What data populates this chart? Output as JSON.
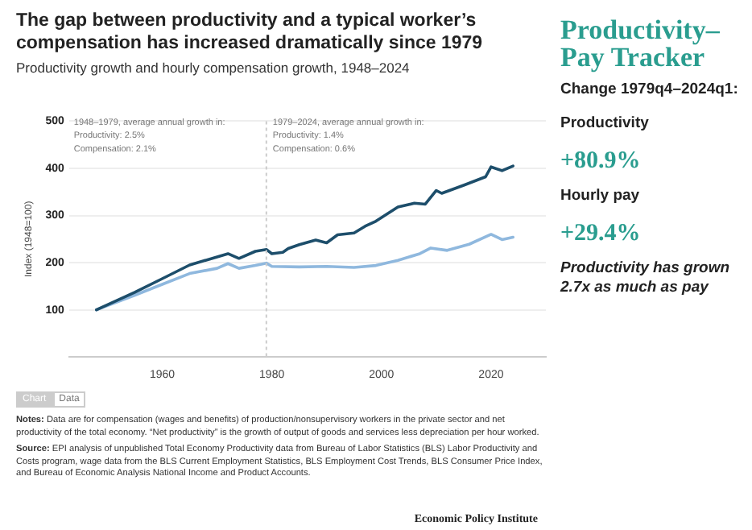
{
  "chart_data": [
    {
      "type": "line",
      "title": "The gap between productivity and a typical worker’s compensation has increased dramatically since 1979",
      "subtitle": "Productivity growth and hourly compensation growth, 1948–2024",
      "ylabel": "Index (1948=100)",
      "xlim": [
        1943,
        2030
      ],
      "xticks": [
        1960,
        1980,
        2000,
        2020
      ],
      "ylim": [
        0,
        500
      ],
      "yticks": [
        100,
        200,
        300,
        400,
        500
      ],
      "grid": "y",
      "legend": false,
      "marker": "none",
      "line_style": "solid",
      "ref_lines": [
        {
          "axis": "x",
          "value": 1979,
          "color": "#cccccc",
          "line_style": "dotted"
        }
      ],
      "series": [
        {
          "color": "#1d4e6b",
          "x": [
            1948,
            1955,
            1960,
            1965,
            1972,
            1974,
            1977,
            1979,
            1980,
            1982,
            1983,
            1985,
            1988,
            1990,
            1992,
            1995,
            1997,
            1999,
            2003,
            2006,
            2008,
            2010,
            2011,
            2015,
            2019,
            2020,
            2022,
            2024
          ],
          "values": [
            100,
            137,
            166,
            195,
            219,
            209,
            224,
            228,
            219,
            222,
            230,
            238,
            248,
            242,
            259,
            263,
            277,
            288,
            318,
            326,
            324,
            353,
            347,
            364,
            382,
            403,
            395,
            405
          ]
        },
        {
          "color": "#8fb8de",
          "x": [
            1948,
            1955,
            1960,
            1965,
            1970,
            1972,
            1974,
            1977,
            1979,
            1980,
            1985,
            1990,
            1995,
            1999,
            2003,
            2007,
            2009,
            2012,
            2016,
            2020,
            2022,
            2024
          ],
          "values": [
            100,
            131,
            154,
            177,
            188,
            198,
            188,
            194,
            199,
            192,
            191,
            192,
            190,
            194,
            205,
            219,
            231,
            226,
            239,
            260,
            249,
            254
          ]
        }
      ],
      "annotations": [
        "1948–1979, average annual growth in:\nProductivity: 2.5%\nCompensation: 2.1%",
        "1979–2024, average annual growth in:\nProductivity: 1.4%\nCompensation: 0.6%",
        "Chart",
        "Data",
        "Notes: Data are for compensation (wages and benefits) of production/nonsupervisory workers in the private sector and net productivity of the total economy. “Net productivity” is the growth of output of goods and services less depreciation per hour worked.",
        "Source: EPI analysis of unpublished Total Economy Productivity data from Bureau of Labor Statistics (BLS) Labor Productivity and Costs program, wage data from the BLS Current Employment Statistics, BLS Employment Cost Trends, BLS Consumer Price Index, and Bureau of Economic Analysis National Income and Product Accounts.",
        "Economic Policy Institute"
      ]
    },
    {
      "type": "other",
      "title": "Productivity–Pay Tracker",
      "annotations": [
        "Change 1979q4–2024q1:",
        "Productivity",
        "+80.9%",
        "Hourly pay",
        "+29.4%",
        "Productivity has grown 2.7x as much as pay"
      ]
    }
  ]
}
